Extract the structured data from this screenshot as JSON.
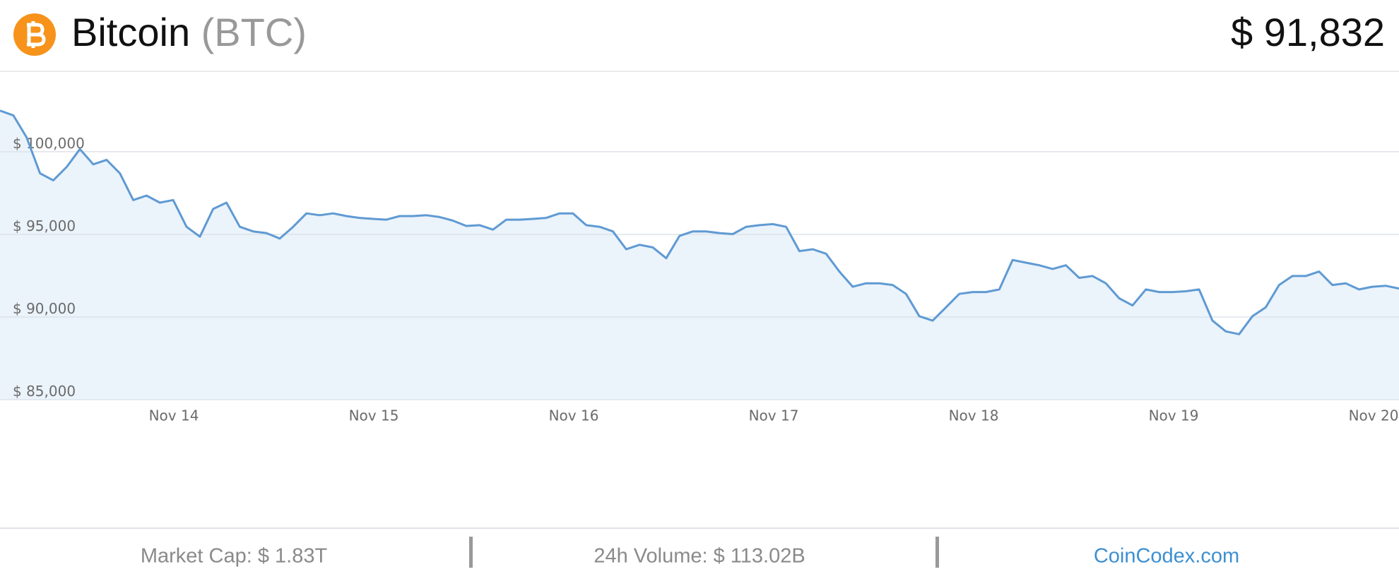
{
  "header": {
    "name": "Bitcoin",
    "symbol": "(BTC)",
    "price": "$ 91,832"
  },
  "chart_data": {
    "type": "line",
    "xtick_labels": [
      "Nov 14",
      "Nov 15",
      "Nov 16",
      "Nov 17",
      "Nov 18",
      "Nov 19",
      "Nov 20"
    ],
    "series": [
      {
        "name": "Bitcoin",
        "color": "#5f9ad3",
        "values": [
          102490,
          102200,
          100870,
          98700,
          98270,
          99080,
          100160,
          99240,
          99510,
          98700,
          97080,
          97350,
          96920,
          97080,
          95460,
          94860,
          96540,
          96920,
          95460,
          95180,
          95080,
          94750,
          95460,
          96270,
          96160,
          96270,
          96110,
          96000,
          95940,
          95890,
          96110,
          96110,
          96160,
          96050,
          95830,
          95510,
          95560,
          95290,
          95890,
          95890,
          95940,
          96000,
          96270,
          96270,
          95560,
          95460,
          95180,
          94100,
          94370,
          94210,
          93560,
          94910,
          95180,
          95180,
          95080,
          95020,
          95460,
          95560,
          95620,
          95460,
          93990,
          94100,
          93830,
          92750,
          91830,
          92040,
          92040,
          91940,
          91400,
          90050,
          89780,
          90590,
          91400,
          91510,
          91510,
          91670,
          93450,
          93290,
          93130,
          92910,
          93130,
          92370,
          92480,
          92040,
          91130,
          90700,
          91670,
          91510,
          91510,
          91560,
          91670,
          89780,
          89130,
          88960,
          90050,
          90590,
          91940,
          92480,
          92480,
          92750,
          91940,
          92040,
          91670,
          91830,
          91890,
          91720
        ]
      }
    ],
    "ylim": [
      85000,
      103800
    ],
    "yticks": [
      {
        "value": 85000,
        "label": "$ 85,000"
      },
      {
        "value": 90000,
        "label": "$ 90,000"
      },
      {
        "value": 95000,
        "label": "$ 95,000"
      },
      {
        "value": 100000,
        "label": "$ 100,000"
      }
    ],
    "grid": true,
    "fill": "#ebf3fb"
  },
  "footer": {
    "market_cap": "Market Cap: $ 1.83T",
    "volume": "24h Volume: $ 113.02B",
    "source": "CoinCodex.com"
  }
}
